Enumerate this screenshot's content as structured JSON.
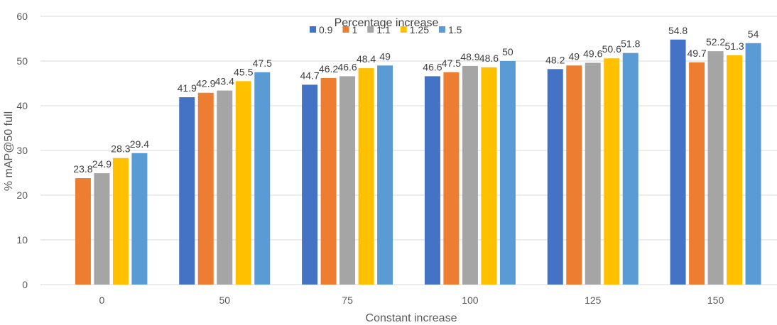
{
  "chart_data": {
    "type": "bar",
    "title": "",
    "xlabel": "Constant increase",
    "ylabel": "% mAP@50 full",
    "ylim": [
      0,
      60
    ],
    "yticks": [
      0,
      10,
      20,
      30,
      40,
      50,
      60
    ],
    "grid": true,
    "legend": {
      "title": "Percentage increase",
      "placement": "top-center"
    },
    "categories": [
      "0",
      "50",
      "75",
      "100",
      "125",
      "150"
    ],
    "series": [
      {
        "name": "0.9",
        "color": "#4472C4",
        "values": [
          null,
          41.9,
          44.7,
          46.6,
          48.2,
          54.8
        ]
      },
      {
        "name": "1",
        "color": "#ED7D31",
        "values": [
          23.8,
          42.9,
          46.2,
          47.5,
          49.0,
          49.7
        ]
      },
      {
        "name": "1.1",
        "color": "#A5A5A5",
        "values": [
          24.9,
          43.4,
          46.6,
          48.9,
          49.6,
          52.2
        ]
      },
      {
        "name": "1.25",
        "color": "#FFC000",
        "values": [
          28.3,
          45.5,
          48.4,
          48.6,
          50.6,
          51.3
        ]
      },
      {
        "name": "1.5",
        "color": "#5B9BD5",
        "values": [
          29.4,
          47.5,
          49.0,
          50.0,
          51.8,
          54.0
        ]
      }
    ]
  }
}
